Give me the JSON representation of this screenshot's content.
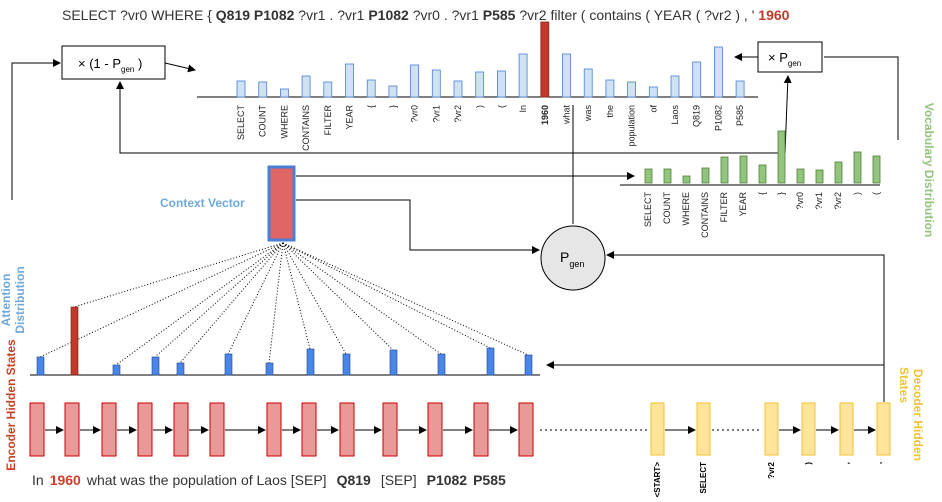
{
  "query": {
    "parts": [
      "SELECT ?vr0 WHERE { ",
      "Q819 P1082",
      " ?vr1 . ?vr1 ",
      "P1082",
      " ?vr0 . ?vr1 ",
      "P585",
      " ?vr2 filter ( contains ( YEAR ( ?vr2 ) , ' ",
      "1960"
    ]
  },
  "boxes": {
    "one_minus": {
      "prefix": "× (1  - P",
      "sub": "gen",
      "suffix": " )"
    },
    "times": {
      "prefix": "× P",
      "sub": "gen"
    }
  },
  "pgen": {
    "main": "P",
    "sub": "gen"
  },
  "labels": {
    "context_vector": "Context Vector",
    "attention": [
      "Attention",
      "Distribution"
    ],
    "vocabulary": "Vocabulary Distribution",
    "encoder": "Encoder Hidden States",
    "decoder": [
      "Decoder  Hidden",
      "States"
    ]
  },
  "attention_tokens": [
    "SELECT",
    "COUNT",
    "WHERE",
    "CONTAINS",
    "FILTER",
    "YEAR",
    "{",
    "}",
    "?vr0",
    "?vr1",
    "?vr2",
    ")",
    "(",
    "In",
    "1960",
    "what",
    "was",
    "the",
    "population",
    "of",
    "Laos",
    "Q819",
    "P1082",
    "P585"
  ],
  "vocab_tokens": [
    "SELECT",
    "COUNT",
    "WHERE",
    "CONTAINS",
    "FILTER",
    "YEAR",
    "{",
    "}",
    "?vr0",
    "?vr1",
    "?vr2",
    ")",
    "("
  ],
  "input": [
    "In",
    "1960",
    "what was  the population of  Laos [SEP]",
    "Q819",
    "[SEP]",
    "P1082",
    "P585"
  ],
  "decoder_tokens": [
    "<START>",
    "SELECT",
    "?vr2",
    ")",
    ",",
    "'"
  ]
}
